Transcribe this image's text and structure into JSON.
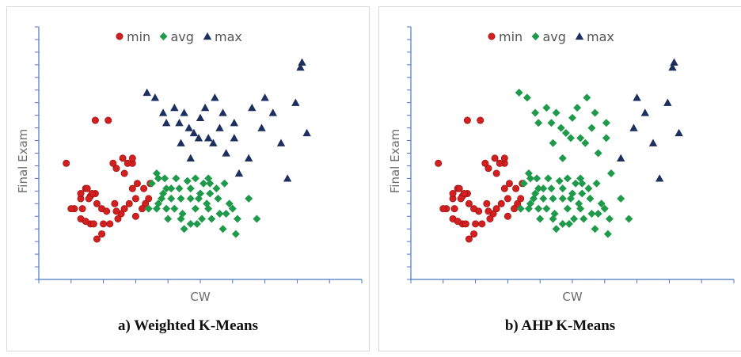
{
  "colors": {
    "min": "#d31f1f",
    "avg": "#1e9a4a",
    "max": "#1d2f5e",
    "axis": "#4a78c2"
  },
  "chart_data": [
    {
      "type": "scatter",
      "caption": "a) Weighted K-Means",
      "xlabel": "CW",
      "ylabel": "Final Exam",
      "legend_position": "top",
      "series": [
        {
          "name": "min",
          "marker": "circle",
          "color": "#d31f1f",
          "points": [
            [
              47,
              23
            ],
            [
              65,
              31.5
            ],
            [
              73,
              31.5
            ],
            [
              83,
              21
            ],
            [
              78,
              22
            ],
            [
              88,
              23
            ],
            [
              88,
              24
            ],
            [
              76,
              23
            ],
            [
              82,
              24
            ],
            [
              85,
              23
            ],
            [
              91,
              19
            ],
            [
              88,
              18
            ],
            [
              95,
              18
            ],
            [
              99,
              19
            ],
            [
              96,
              15
            ],
            [
              90,
              16
            ],
            [
              86,
              15
            ],
            [
              98,
              16
            ],
            [
              94,
              14
            ],
            [
              81,
              13
            ],
            [
              90,
              12.5
            ],
            [
              83,
              14
            ],
            [
              78,
              13.5
            ],
            [
              69,
              14
            ],
            [
              72,
              13.5
            ],
            [
              77,
              15
            ],
            [
              66,
              15
            ],
            [
              62,
              16.5
            ],
            [
              65,
              17
            ],
            [
              59,
              18
            ],
            [
              60,
              18
            ],
            [
              63,
              17
            ],
            [
              61,
              16
            ],
            [
              57,
              14
            ],
            [
              56,
              16
            ],
            [
              56,
              17
            ],
            [
              52,
              14
            ],
            [
              50,
              14
            ],
            [
              56,
              12
            ],
            [
              62,
              11
            ],
            [
              59,
              11.5
            ],
            [
              64,
              11
            ],
            [
              70,
              11
            ],
            [
              74,
              11
            ],
            [
              79,
              12
            ],
            [
              69,
              9
            ],
            [
              66,
              8
            ]
          ]
        },
        {
          "name": "avg",
          "marker": "diamond",
          "color": "#1e9a4a",
          "points": [
            [
              100,
              19
            ],
            [
              103,
              21
            ],
            [
              108,
              20
            ],
            [
              115,
              20
            ],
            [
              122,
              19.5
            ],
            [
              127,
              20
            ],
            [
              132,
              19
            ],
            [
              109,
              18
            ],
            [
              107,
              17
            ],
            [
              112,
              18
            ],
            [
              117,
              18
            ],
            [
              124,
              18
            ],
            [
              130,
              17
            ],
            [
              136,
              17
            ],
            [
              140,
              18
            ],
            [
              145,
              19
            ],
            [
              106,
              16
            ],
            [
              112,
              16
            ],
            [
              118,
              16
            ],
            [
              124,
              16
            ],
            [
              129,
              16
            ],
            [
              134,
              15
            ],
            [
              141,
              16
            ],
            [
              148,
              15
            ],
            [
              103,
              14
            ],
            [
              109,
              14
            ],
            [
              114,
              14
            ],
            [
              119,
              13
            ],
            [
              127,
              14
            ],
            [
              135,
              14
            ],
            [
              142,
              13
            ],
            [
              150,
              14
            ],
            [
              110,
              12
            ],
            [
              118,
              12
            ],
            [
              124,
              11
            ],
            [
              131,
              12
            ],
            [
              137,
              12
            ],
            [
              146,
              13
            ],
            [
              153,
              12
            ],
            [
              160,
              16
            ],
            [
              120,
              10
            ],
            [
              128,
              11
            ],
            [
              144,
              10
            ],
            [
              152,
              9
            ],
            [
              165,
              12
            ],
            [
              98,
              14
            ],
            [
              104,
              15
            ],
            [
              104,
              20
            ],
            [
              136,
              19
            ],
            [
              135,
              20
            ]
          ]
        },
        {
          "name": "max",
          "marker": "triangle",
          "color": "#1d2f5e",
          "points": [
            [
              97,
              37
            ],
            [
              102,
              36
            ],
            [
              107,
              33
            ],
            [
              114,
              34
            ],
            [
              120,
              33
            ],
            [
              126,
              29
            ],
            [
              133,
              34
            ],
            [
              139,
              36
            ],
            [
              144,
              33
            ],
            [
              109,
              31
            ],
            [
              117,
              31
            ],
            [
              123,
              30
            ],
            [
              130,
              32
            ],
            [
              135,
              28
            ],
            [
              142,
              30
            ],
            [
              151,
              31
            ],
            [
              146,
              25
            ],
            [
              151,
              28
            ],
            [
              160,
              24
            ],
            [
              168,
              30
            ],
            [
              175,
              33
            ],
            [
              180,
              27
            ],
            [
              192,
              42
            ],
            [
              189,
              35
            ],
            [
              193,
              43
            ],
            [
              196,
              29
            ],
            [
              118,
              27
            ],
            [
              124,
              24
            ],
            [
              129,
              28
            ],
            [
              138,
              27
            ],
            [
              154,
              21
            ],
            [
              162,
              34
            ],
            [
              184,
              20
            ],
            [
              170,
              36
            ]
          ]
        }
      ]
    },
    {
      "type": "scatter",
      "caption": "b) AHP  K-Means",
      "xlabel": "CW",
      "ylabel": "Final Exam",
      "legend_position": "top",
      "series": [
        {
          "name": "min",
          "marker": "circle",
          "color": "#d31f1f",
          "points": [
            [
              47,
              23
            ],
            [
              65,
              31.5
            ],
            [
              73,
              31.5
            ],
            [
              83,
              21
            ],
            [
              78,
              22
            ],
            [
              88,
              23
            ],
            [
              88,
              24
            ],
            [
              76,
              23
            ],
            [
              82,
              24
            ],
            [
              85,
              23
            ],
            [
              91,
              19
            ],
            [
              88,
              18
            ],
            [
              95,
              18
            ],
            [
              99,
              19
            ],
            [
              96,
              15
            ],
            [
              90,
              16
            ],
            [
              86,
              15
            ],
            [
              98,
              16
            ],
            [
              94,
              14
            ],
            [
              81,
              13
            ],
            [
              90,
              12.5
            ],
            [
              83,
              14
            ],
            [
              78,
              13.5
            ],
            [
              69,
              14
            ],
            [
              72,
              13.5
            ],
            [
              77,
              15
            ],
            [
              66,
              15
            ],
            [
              62,
              16.5
            ],
            [
              65,
              17
            ],
            [
              59,
              18
            ],
            [
              60,
              18
            ],
            [
              63,
              17
            ],
            [
              61,
              16
            ],
            [
              57,
              14
            ],
            [
              56,
              16
            ],
            [
              56,
              17
            ],
            [
              52,
              14
            ],
            [
              50,
              14
            ],
            [
              56,
              12
            ],
            [
              62,
              11
            ],
            [
              59,
              11.5
            ],
            [
              64,
              11
            ],
            [
              70,
              11
            ],
            [
              74,
              11
            ],
            [
              79,
              12
            ],
            [
              69,
              9
            ],
            [
              66,
              8
            ]
          ]
        },
        {
          "name": "avg",
          "marker": "diamond",
          "color": "#1e9a4a",
          "points": [
            [
              100,
              19
            ],
            [
              103,
              21
            ],
            [
              108,
              20
            ],
            [
              115,
              20
            ],
            [
              122,
              19.5
            ],
            [
              127,
              20
            ],
            [
              132,
              19
            ],
            [
              109,
              18
            ],
            [
              107,
              17
            ],
            [
              112,
              18
            ],
            [
              117,
              18
            ],
            [
              124,
              18
            ],
            [
              130,
              17
            ],
            [
              136,
              17
            ],
            [
              140,
              18
            ],
            [
              145,
              19
            ],
            [
              106,
              16
            ],
            [
              112,
              16
            ],
            [
              118,
              16
            ],
            [
              124,
              16
            ],
            [
              129,
              16
            ],
            [
              134,
              15
            ],
            [
              141,
              16
            ],
            [
              148,
              15
            ],
            [
              103,
              14
            ],
            [
              109,
              14
            ],
            [
              114,
              14
            ],
            [
              119,
              13
            ],
            [
              127,
              14
            ],
            [
              135,
              14
            ],
            [
              142,
              13
            ],
            [
              150,
              14
            ],
            [
              110,
              12
            ],
            [
              118,
              12
            ],
            [
              124,
              11
            ],
            [
              131,
              12
            ],
            [
              137,
              12
            ],
            [
              146,
              13
            ],
            [
              153,
              12
            ],
            [
              160,
              16
            ],
            [
              120,
              10
            ],
            [
              128,
              11
            ],
            [
              144,
              10
            ],
            [
              152,
              9
            ],
            [
              165,
              12
            ],
            [
              98,
              14
            ],
            [
              104,
              15
            ],
            [
              104,
              20
            ],
            [
              136,
              19
            ],
            [
              135,
              20
            ],
            [
              97,
              37
            ],
            [
              102,
              36
            ],
            [
              107,
              33
            ],
            [
              114,
              34
            ],
            [
              120,
              33
            ],
            [
              109,
              31
            ],
            [
              117,
              31
            ],
            [
              123,
              30
            ],
            [
              130,
              32
            ],
            [
              135,
              28
            ],
            [
              142,
              30
            ],
            [
              118,
              27
            ],
            [
              124,
              24
            ],
            [
              129,
              28
            ],
            [
              138,
              27
            ],
            [
              126,
              29
            ],
            [
              133,
              34
            ],
            [
              139,
              36
            ],
            [
              144,
              33
            ],
            [
              146,
              25
            ],
            [
              151,
              28
            ],
            [
              154,
              21
            ],
            [
              151,
              31
            ]
          ]
        },
        {
          "name": "max",
          "marker": "triangle",
          "color": "#1d2f5e",
          "points": [
            [
              160,
              24
            ],
            [
              168,
              30
            ],
            [
              175,
              33
            ],
            [
              180,
              27
            ],
            [
              192,
              42
            ],
            [
              189,
              35
            ],
            [
              193,
              43
            ],
            [
              196,
              29
            ],
            [
              184,
              20
            ],
            [
              170,
              36
            ]
          ]
        }
      ]
    }
  ]
}
